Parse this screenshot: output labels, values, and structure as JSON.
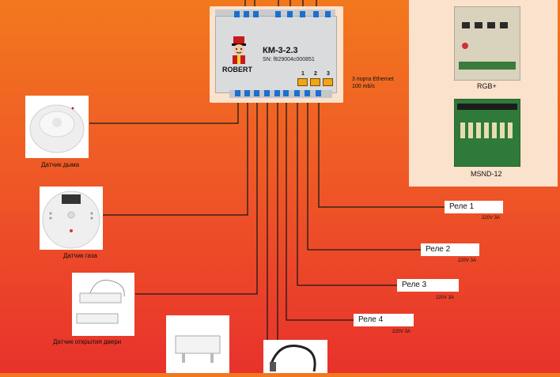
{
  "controller": {
    "model": "КМ-3-2.3",
    "serial": "SN: f829004c000851",
    "brand": "ROBERT",
    "ethernet_ports": [
      "1",
      "2",
      "3"
    ],
    "ethernet_label_line1": "3 порта Ethernet",
    "ethernet_label_line2": "100 mb/s"
  },
  "sensors": [
    {
      "label": "Датчик дыма",
      "icon": "smoke-detector-icon"
    },
    {
      "label": "Датчик газа",
      "icon": "gas-detector-icon"
    },
    {
      "label": "Датчик открытия двери",
      "icon": "door-sensor-icon"
    },
    {
      "label": "",
      "icon": "water-leak-sensor-icon"
    },
    {
      "label": "",
      "icon": "temperature-probe-icon"
    }
  ],
  "relays": [
    {
      "label": "Реле 1",
      "rating": "220V 3A"
    },
    {
      "label": "Реле 2",
      "rating": "220V 3A"
    },
    {
      "label": "Реле 3",
      "rating": "220V 3A"
    },
    {
      "label": "Реле 4",
      "rating": "220V 3A"
    }
  ],
  "modules": [
    {
      "label": "RGB+",
      "icon": "rgb-board-icon"
    },
    {
      "label": "MSND-12",
      "icon": "msnd-board-icon"
    }
  ],
  "colors": {
    "background_top": "#f2781e",
    "background_bottom": "#e8322c",
    "terminal": "#1c6fd0",
    "port": "#f0a418"
  }
}
